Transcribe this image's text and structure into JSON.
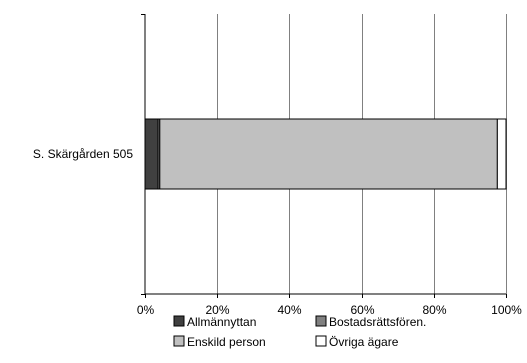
{
  "chart_data": {
    "type": "bar",
    "orientation": "horizontal",
    "stacked": "percent",
    "categories": [
      "S. Skärgården 505"
    ],
    "series": [
      {
        "name": "Allmännyttan",
        "values": [
          3.6
        ],
        "color": "#404040"
      },
      {
        "name": "Bostadsrättsfören.",
        "values": [
          0.5
        ],
        "color": "#808080"
      },
      {
        "name": "Enskild person",
        "values": [
          93.5
        ],
        "color": "#c0c0c0"
      },
      {
        "name": "Övriga ägare",
        "values": [
          2.4
        ],
        "color": "#ffffff"
      }
    ],
    "x_ticks": [
      "0%",
      "20%",
      "40%",
      "60%",
      "80%",
      "100%"
    ],
    "xlim": [
      0,
      100
    ],
    "grid": true,
    "legend_position": "bottom"
  }
}
